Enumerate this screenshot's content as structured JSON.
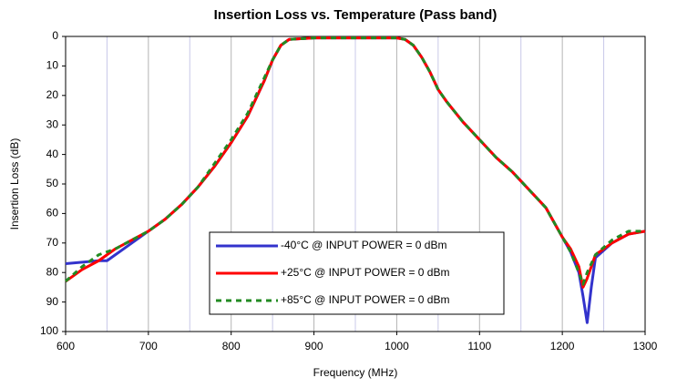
{
  "chart_data": {
    "type": "line",
    "title": "Insertion Loss vs. Temperature (Pass band)",
    "xlabel": "Frequency (MHz)",
    "ylabel": "Insertion Loss (dB)",
    "x": [
      600,
      620,
      640,
      650,
      660,
      680,
      700,
      720,
      740,
      760,
      780,
      800,
      820,
      840,
      850,
      860,
      870,
      900,
      950,
      1000,
      1010,
      1020,
      1030,
      1040,
      1050,
      1060,
      1080,
      1100,
      1120,
      1140,
      1160,
      1180,
      1190,
      1200,
      1210,
      1220,
      1225,
      1230,
      1235,
      1240,
      1260,
      1280,
      1300
    ],
    "series": [
      {
        "name": "-40°C @ INPUT POWER = 0 dBm",
        "color": "#3333cc",
        "style": "solid",
        "values": [
          77,
          76.5,
          76,
          76,
          74,
          70,
          66,
          62,
          57,
          51,
          44,
          36,
          27,
          15,
          8,
          3,
          1,
          0.5,
          0.5,
          0.5,
          1,
          3,
          7,
          12,
          18,
          22,
          29,
          35,
          41,
          46,
          52,
          58,
          63,
          68,
          73,
          80,
          88,
          97,
          85,
          75,
          70,
          67,
          66
        ]
      },
      {
        "name": "+25°C @ INPUT POWER = 0 dBm",
        "color": "#ff0000",
        "style": "solid",
        "values": [
          83,
          79,
          76,
          74,
          72,
          69,
          66,
          62,
          57,
          51,
          44,
          36,
          27,
          15,
          8,
          3,
          1,
          0.5,
          0.5,
          0.5,
          1,
          3,
          7,
          12,
          18,
          22,
          29,
          35,
          41,
          46,
          52,
          58,
          63,
          68,
          72,
          78,
          85,
          82,
          78,
          74,
          70,
          67,
          66
        ]
      },
      {
        "name": "+85°C @ INPUT POWER = 0 dBm",
        "color": "#228b22",
        "style": "dashed",
        "values": [
          83,
          78,
          74,
          73,
          72,
          69,
          66,
          62,
          57,
          51,
          43,
          35,
          26,
          14,
          8,
          3,
          1,
          0.5,
          0.5,
          0.5,
          1,
          3,
          7,
          12,
          18,
          22,
          29,
          35,
          41,
          46,
          52,
          58,
          63,
          68,
          73,
          80,
          84,
          80,
          77,
          74,
          69,
          66,
          66
        ]
      }
    ],
    "xlim": [
      600,
      1300
    ],
    "xticks": [
      600,
      700,
      800,
      900,
      1000,
      1100,
      1200,
      1300
    ],
    "x_minor_grid": [
      650,
      750,
      850,
      950,
      1050,
      1150,
      1250
    ],
    "ylim": [
      100,
      0
    ],
    "yticks": [
      0,
      10,
      20,
      30,
      40,
      50,
      60,
      70,
      80,
      90,
      100
    ],
    "grid": true,
    "legend": "lower center"
  }
}
